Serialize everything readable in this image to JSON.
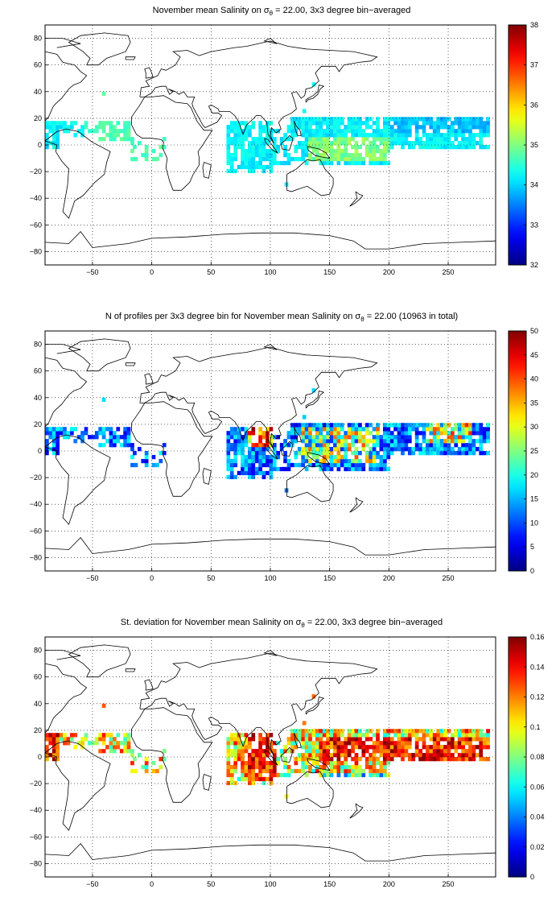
{
  "panels": [
    {
      "title_pre": "November mean Salinity on ",
      "title_sym": "σ",
      "title_sub": "θ",
      "title_post": " = 22.00, 3x3 degree bin−averaged",
      "colorbar": {
        "min": 32,
        "max": 38,
        "ticks": [
          "38",
          "37",
          "36",
          "35",
          "34",
          "33",
          "32"
        ]
      },
      "variable": "salinity"
    },
    {
      "title_pre": "N of profiles per 3x3 degree bin for November mean Salinity on ",
      "title_sym": "σ",
      "title_sub": "θ",
      "title_post": " = 22.00 (10963 in total)",
      "colorbar": {
        "min": 0,
        "max": 50,
        "ticks": [
          "50",
          "45",
          "40",
          "35",
          "30",
          "25",
          "20",
          "15",
          "10",
          "5",
          "0"
        ]
      },
      "variable": "count"
    },
    {
      "title_pre": "St. deviation for November mean Salinity on ",
      "title_sym": "σ",
      "title_sub": "θ",
      "title_post": " = 22.00, 3x3 degree bin−averaged",
      "colorbar": {
        "min": 0,
        "max": 0.16,
        "ticks": [
          "0.16",
          "0.14",
          "0.12",
          "0.1",
          "0.08",
          "0.06",
          "0.04",
          "0.02",
          "0"
        ]
      },
      "variable": "stdev"
    }
  ],
  "axes": {
    "x_ticks": [
      "-50",
      "0",
      "50",
      "100",
      "150",
      "200",
      "250"
    ],
    "y_ticks": [
      "80",
      "60",
      "40",
      "20",
      "0",
      "-20",
      "-40",
      "-60",
      "-80"
    ],
    "xlim": [
      -90,
      290
    ],
    "ylim": [
      -90,
      90
    ],
    "grid": true
  },
  "colormap": "jet"
}
